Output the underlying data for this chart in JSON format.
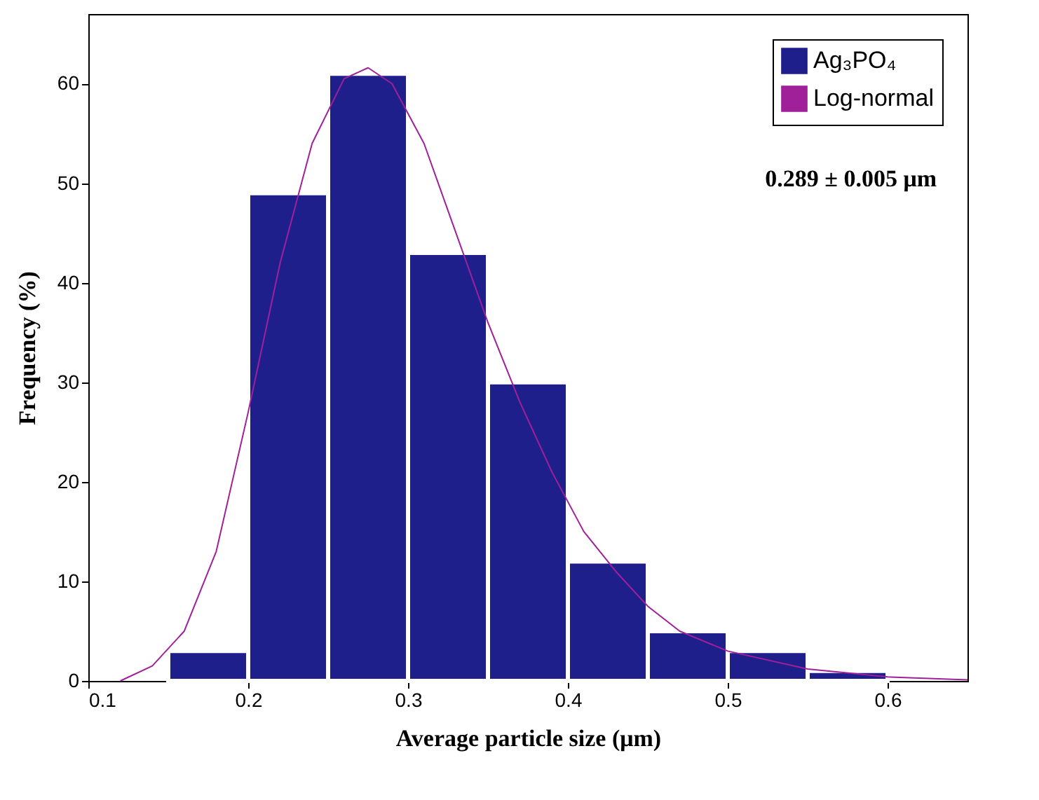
{
  "chart_data": {
    "type": "histogram",
    "xlabel": "Average particle size (μm)",
    "ylabel": "Frequency (%)",
    "bins": [
      0.15,
      0.2,
      0.25,
      0.3,
      0.35,
      0.4,
      0.45,
      0.5,
      0.55,
      0.6
    ],
    "series": [
      {
        "name": "Ag₃PO₄",
        "color": "#1f1f8c",
        "values": [
          3,
          49,
          61,
          43,
          30,
          12,
          5,
          3,
          1
        ]
      },
      {
        "name": "Log-normal",
        "type": "line",
        "color": "#a0209a",
        "x": [
          0.12,
          0.14,
          0.16,
          0.18,
          0.2,
          0.22,
          0.24,
          0.26,
          0.275,
          0.29,
          0.31,
          0.33,
          0.35,
          0.37,
          0.39,
          0.41,
          0.43,
          0.45,
          0.47,
          0.5,
          0.55,
          0.6,
          0.65
        ],
        "values": [
          0,
          1.5,
          5,
          13,
          27,
          42,
          54,
          60.5,
          61.6,
          60,
          54,
          45,
          36,
          28,
          21,
          15,
          11,
          7.5,
          5,
          3,
          1.2,
          0.4,
          0.1
        ]
      }
    ],
    "xlim": [
      0.1,
      0.65
    ],
    "xticks": [
      0.1,
      0.2,
      0.3,
      0.4,
      0.5,
      0.6
    ],
    "ylim": [
      0,
      67
    ],
    "yticks": [
      0,
      10,
      20,
      30,
      40,
      50,
      60
    ],
    "legend": "top right",
    "grid": false,
    "marker": "none",
    "line_style": "solid",
    "annotations": [
      "0.289 ± 0.005 μm"
    ]
  }
}
